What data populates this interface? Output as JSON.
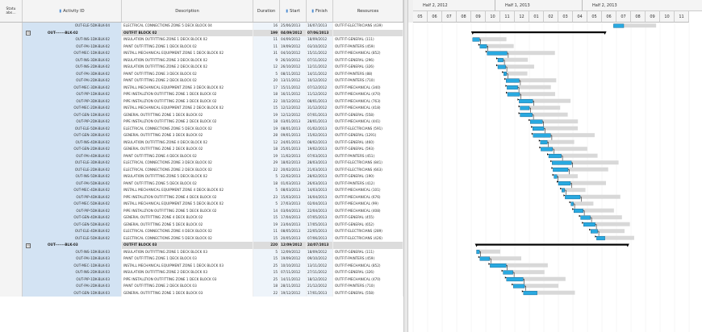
{
  "grid": {
    "columns": {
      "status": "Statu\nabs...",
      "activity_id": "Activity ID",
      "description": "Description",
      "duration": "Duration",
      "start": "Start",
      "finish": "Finish",
      "resources": "Resources"
    },
    "rows": [
      {
        "id": "OUT-ELE-5DK-BLK-04",
        "desc": "ELECTRICAL CONNECTIONS ZONE 5 DECK BLOCK 04",
        "dur": "16",
        "start": "25/06/2013",
        "finish": "16/07/2013",
        "res": "OUTFIT-ELECTRICIANS (439)",
        "summary": false
      },
      {
        "id": "OUT-------BLK-02",
        "desc": "OUTFIT BLOCK 02",
        "dur": "199",
        "start": "04/09/2012",
        "finish": "07/06/2013",
        "res": "",
        "summary": true,
        "collapse": "⊟"
      },
      {
        "id": "OUT-INS-1DK-BLK-02",
        "desc": "INSULATION OUTFITTING ZONE 1 DECK BLOCK 02",
        "dur": "11",
        "start": "04/09/2012",
        "finish": "18/09/2012",
        "res": "OUTFIT-GENERAL (111)",
        "summary": false
      },
      {
        "id": "OUT-PAI-1DK-BLK-02",
        "desc": "PAINT OUTFITTING ZONE 1 DECK BLOCK 02",
        "dur": "11",
        "start": "19/09/2012",
        "finish": "03/10/2012",
        "res": "OUTFIT-PAINTERS (459)",
        "summary": false
      },
      {
        "id": "OUT-MEC-1DK-BLK-02",
        "desc": "INSTALL MECHANICAL EQUIPMENT ZONE 1 DECK BLOCK 02",
        "dur": "31",
        "start": "04/10/2012",
        "finish": "15/11/2012",
        "res": "OUTFIT-MECHANICAL (852)",
        "summary": false
      },
      {
        "id": "OUT-INS-3DK-BLK-02",
        "desc": "INSULATION OUTFITTING ZONE 3 DECK BLOCK 02",
        "dur": "9",
        "start": "26/10/2012",
        "finish": "07/11/2012",
        "res": "OUTFIT-GENERAL (296)",
        "summary": false
      },
      {
        "id": "OUT-INS-2DK-BLK-02",
        "desc": "INSULATION OUTFITTING ZONE 2 DECK BLOCK 02",
        "dur": "12",
        "start": "26/10/2012",
        "finish": "12/11/2012",
        "res": "OUTFIT-GENERAL (326)",
        "summary": false
      },
      {
        "id": "OUT-PAI-3DK-BLK-02",
        "desc": "PAINT OUTFITTING ZONE 3 DECK BLOCK 02",
        "dur": "5",
        "start": "08/11/2012",
        "finish": "14/11/2012",
        "res": "OUTFIT-PAINTERS (88)",
        "summary": false
      },
      {
        "id": "OUT-PAI-2DK-BLK-02",
        "desc": "PAINT OUTFITTING ZONE 2 DECK BLOCK 02",
        "dur": "20",
        "start": "13/11/2012",
        "finish": "10/12/2012",
        "res": "OUTFIT-PAINTERS (710)",
        "summary": false
      },
      {
        "id": "OUT-MEC-3DK-BLK-02",
        "desc": "INSTALL MECHANICAL EQUIPMENT ZONE 3 DECK BLOCK 02",
        "dur": "17",
        "start": "15/11/2012",
        "finish": "07/12/2012",
        "res": "OUTFIT-MECHANICAL (340)",
        "summary": false
      },
      {
        "id": "OUT-PIP-1DK-BLK-02",
        "desc": "PIPE INSTALLTION OUTFITTING ZONE 1 DECK BLOCK 02",
        "dur": "18",
        "start": "16/11/2012",
        "finish": "11/12/2012",
        "res": "OUTFIT-MECHANICAL (470)",
        "summary": false
      },
      {
        "id": "OUT-PIP-3DK-BLK-02",
        "desc": "PIPE INSTALLTION OUTFITTING ZONE 3 DECK BLOCK 02",
        "dur": "22",
        "start": "10/12/2012",
        "finish": "08/01/2013",
        "res": "OUTFIT-MECHANICAL (763)",
        "summary": false
      },
      {
        "id": "OUT-MEC-2DK-BLK-02",
        "desc": "INSTALL MECHANICAL EQUIPMENT ZONE 2 DECK BLOCK 02",
        "dur": "15",
        "start": "12/12/2012",
        "finish": "31/12/2012",
        "res": "OUTFIT-MECHANICAL (418)",
        "summary": false
      },
      {
        "id": "OUT-GEN-1DK-BLK-02",
        "desc": "GENERAL OUTFITTING ZONE 1 DECK BLOCK 02",
        "dur": "19",
        "start": "12/12/2012",
        "finish": "07/01/2013",
        "res": "OUTFIT-GENERAL (558)",
        "summary": false
      },
      {
        "id": "OUT-PIP-2DK-BLK-02",
        "desc": "PIPE INSTALLTION OUTFITTING ZONE 2 DECK BLOCK 02",
        "dur": "18",
        "start": "03/01/2013",
        "finish": "28/01/2013",
        "res": "OUTFIT-MECHANICAL (441)",
        "summary": false
      },
      {
        "id": "OUT-ELE-5DK-BLK-02",
        "desc": "ELECTRICAL CONNECTIONS ZONE 5 DECK BLOCK 02",
        "dur": "19",
        "start": "08/01/2013",
        "finish": "01/02/2013",
        "res": "OUTFIT-ELECTRICIANS (591)",
        "summary": false
      },
      {
        "id": "OUT-GEN-3DK-BLK-02",
        "desc": "GENERAL OUTFITTING ZONE 3 DECK BLOCK 02",
        "dur": "28",
        "start": "09/01/2013",
        "finish": "15/02/2013",
        "res": "OUTFIT-GENERAL (1291)",
        "summary": false
      },
      {
        "id": "OUT-INS-4DK-BLK-02",
        "desc": "INSULATION OUTFITTING ZONE 4 DECK BLOCK 02",
        "dur": "12",
        "start": "24/01/2013",
        "finish": "08/02/2013",
        "res": "OUTFIT-GENERAL (460)",
        "summary": false
      },
      {
        "id": "OUT-GEN-2DK-BLK-02",
        "desc": "GENERAL OUTFITTING ZONE 2 DECK BLOCK 02",
        "dur": "18",
        "start": "25/01/2013",
        "finish": "19/02/2013",
        "res": "OUTFIT-GENERAL (593)",
        "summary": false
      },
      {
        "id": "OUT-PAI-4DK-BLK-02",
        "desc": "PAINT OUTFITTING ZONE 4 DECK BLOCK 02",
        "dur": "19",
        "start": "11/02/2013",
        "finish": "07/03/2013",
        "res": "OUTFIT-PAINTERS (451)",
        "summary": false
      },
      {
        "id": "OUT-ELE-3DK-BLK-02",
        "desc": "ELECTRICAL CONNECTIONS ZONE 3 DECK BLOCK 02",
        "dur": "29",
        "start": "18/02/2013",
        "finish": "28/03/2013",
        "res": "OUTFIT-ELECTRICIANS (841)",
        "summary": false
      },
      {
        "id": "OUT-ELE-2DK-BLK-02",
        "desc": "ELECTRICAL CONNECTIONS ZONE 2 DECK BLOCK 02",
        "dur": "22",
        "start": "20/02/2013",
        "finish": "21/03/2013",
        "res": "OUTFIT-ELECTRICIANS (663)",
        "summary": false
      },
      {
        "id": "OUT-INS-5DK-BLK-02",
        "desc": "INSULATION OUTFITTING ZONE 5 DECK BLOCK 02",
        "dur": "5",
        "start": "22/02/2013",
        "finish": "28/02/2013",
        "res": "OUTFIT-GENERAL (190)",
        "summary": false
      },
      {
        "id": "OUT-PAI-5DK-BLK-02",
        "desc": "PAINT OUTFITTING ZONE 5 DECK BLOCK 02",
        "dur": "18",
        "start": "01/03/2013",
        "finish": "26/03/2013",
        "res": "OUTFIT-PAINTERS (412)",
        "summary": false
      },
      {
        "id": "OUT-MEC-4DK-BLK-02",
        "desc": "INSTALL MECHANICAL EQUIPMENT ZONE 4 DECK BLOCK 02",
        "dur": "5",
        "start": "08/03/2013",
        "finish": "14/03/2013",
        "res": "OUTFIT-MECHANICAL (101)",
        "summary": false
      },
      {
        "id": "OUT-PIP-4DK-BLK-02",
        "desc": "PIPE INSTALLTION OUTFITTING ZONE 4 DECK BLOCK 02",
        "dur": "23",
        "start": "15/03/2013",
        "finish": "16/04/2013",
        "res": "OUTFIT-MECHANICAL (676)",
        "summary": false
      },
      {
        "id": "OUT-MEC-5DK-BLK-02",
        "desc": "INSTALL MECHANICAL EQUIPMENT ZONE 5 DECK BLOCK 02",
        "dur": "5",
        "start": "27/03/2013",
        "finish": "02/04/2013",
        "res": "OUTFIT-MECHANICAL (99)",
        "summary": false
      },
      {
        "id": "OUT-PIP-5DK-BLK-02",
        "desc": "PIPE INSTALLTION OUTFITTING ZONE 5 DECK BLOCK 02",
        "dur": "14",
        "start": "03/04/2013",
        "finish": "22/04/2013",
        "res": "OUTFIT-MECHANICAL (408)",
        "summary": false
      },
      {
        "id": "OUT-GEN-4DK-BLK-02",
        "desc": "GENERAL OUTFITTING ZONE 4 DECK BLOCK 02",
        "dur": "15",
        "start": "17/04/2013",
        "finish": "07/05/2013",
        "res": "OUTFIT-GENERAL (455)",
        "summary": false
      },
      {
        "id": "OUT-GEN-5DK-BLK-02",
        "desc": "GENERAL OUTFITTING ZONE 5 DECK BLOCK 02",
        "dur": "19",
        "start": "23/04/2013",
        "finish": "17/05/2013",
        "res": "OUTFIT-GENERAL (652)",
        "summary": false
      },
      {
        "id": "OUT-ELE-4DK-BLK-02",
        "desc": "ELECTRICAL CONNECTIONS ZONE 4 DECK BLOCK 02",
        "dur": "11",
        "start": "08/05/2013",
        "finish": "22/05/2013",
        "res": "OUTFIT-ELECTRICIANS (289)",
        "summary": false
      },
      {
        "id": "OUT-ELE-5DK-BLK-02",
        "desc": "ELECTRICAL CONNECTIONS ZONE 5 DECK BLOCK 02",
        "dur": "15",
        "start": "20/05/2013",
        "finish": "07/06/2013",
        "res": "OUTFIT-ELECTRICIANS (426)",
        "summary": false
      },
      {
        "id": "OUT-------BLK-03",
        "desc": "OUTFIT BLOCK 03",
        "dur": "220",
        "start": "12/09/2012",
        "finish": "24/07/2013",
        "res": "",
        "summary": true,
        "collapse": "⊟"
      },
      {
        "id": "OUT-INS-1DK-BLK-03",
        "desc": "INSULATION OUTFITTING ZONE 1 DECK BLOCK 03",
        "dur": "5",
        "start": "12/09/2012",
        "finish": "18/09/2012",
        "res": "OUTFIT-GENERAL (111)",
        "summary": false
      },
      {
        "id": "OUT-PAI-1DK-BLK-03",
        "desc": "PAINT OUTFITTING ZONE 1 DECK BLOCK 03",
        "dur": "15",
        "start": "19/09/2012",
        "finish": "09/10/2012",
        "res": "OUTFIT-PAINTERS (459)",
        "summary": false
      },
      {
        "id": "OUT-MEC-1DK-BLK-03",
        "desc": "INSTALL MECHANICAL EQUIPMENT ZONE 1 DECK BLOCK 03",
        "dur": "25",
        "start": "10/10/2012",
        "finish": "13/11/2012",
        "res": "OUTFIT-MECHANICAL (852)",
        "summary": false
      },
      {
        "id": "OUT-INS-2DK-BLK-03",
        "desc": "INSULATION OUTFITTING ZONE 2 DECK BLOCK 03",
        "dur": "15",
        "start": "07/11/2012",
        "finish": "27/11/2012",
        "res": "OUTFIT-GENERAL (326)",
        "summary": false
      },
      {
        "id": "OUT-PIP-1DK-BLK-03",
        "desc": "PIPE INSTALLTION OUTFITTING ZONE 1 DECK BLOCK 03",
        "dur": "25",
        "start": "14/11/2012",
        "finish": "18/12/2012",
        "res": "OUTFIT-MECHANICAL (470)",
        "summary": false
      },
      {
        "id": "OUT-PAI-2DK-BLK-03",
        "desc": "PAINT OUTFITTING ZONE 2 DECK BLOCK 03",
        "dur": "18",
        "start": "28/11/2012",
        "finish": "21/12/2012",
        "res": "OUTFIT-PAINTERS (710)",
        "summary": false
      },
      {
        "id": "OUT-GEN-1DK-BLK-03",
        "desc": "GENERAL OUTFITTING ZONE 1 DECK BLOCK 03",
        "dur": "22",
        "start": "19/12/2012",
        "finish": "17/01/2013",
        "res": "OUTFIT-GENERAL (558)",
        "summary": false
      }
    ]
  },
  "gantt": {
    "top_scale": [
      {
        "label": "Half 2, 2012"
      },
      {
        "label": "Half 1, 2013"
      },
      {
        "label": "Half 2, 2013"
      }
    ],
    "sub_scale": [
      "05",
      "06",
      "07",
      "08",
      "09",
      "10",
      "11",
      "12",
      "01",
      "02",
      "03",
      "04",
      "05",
      "06",
      "07",
      "08",
      "09",
      "10",
      "11"
    ],
    "colors": {
      "bar": "#29a9e0",
      "bar_border": "#0a5e8c",
      "summary": "#000000",
      "baseline": "#d8d8d8",
      "link": "#000000"
    }
  }
}
